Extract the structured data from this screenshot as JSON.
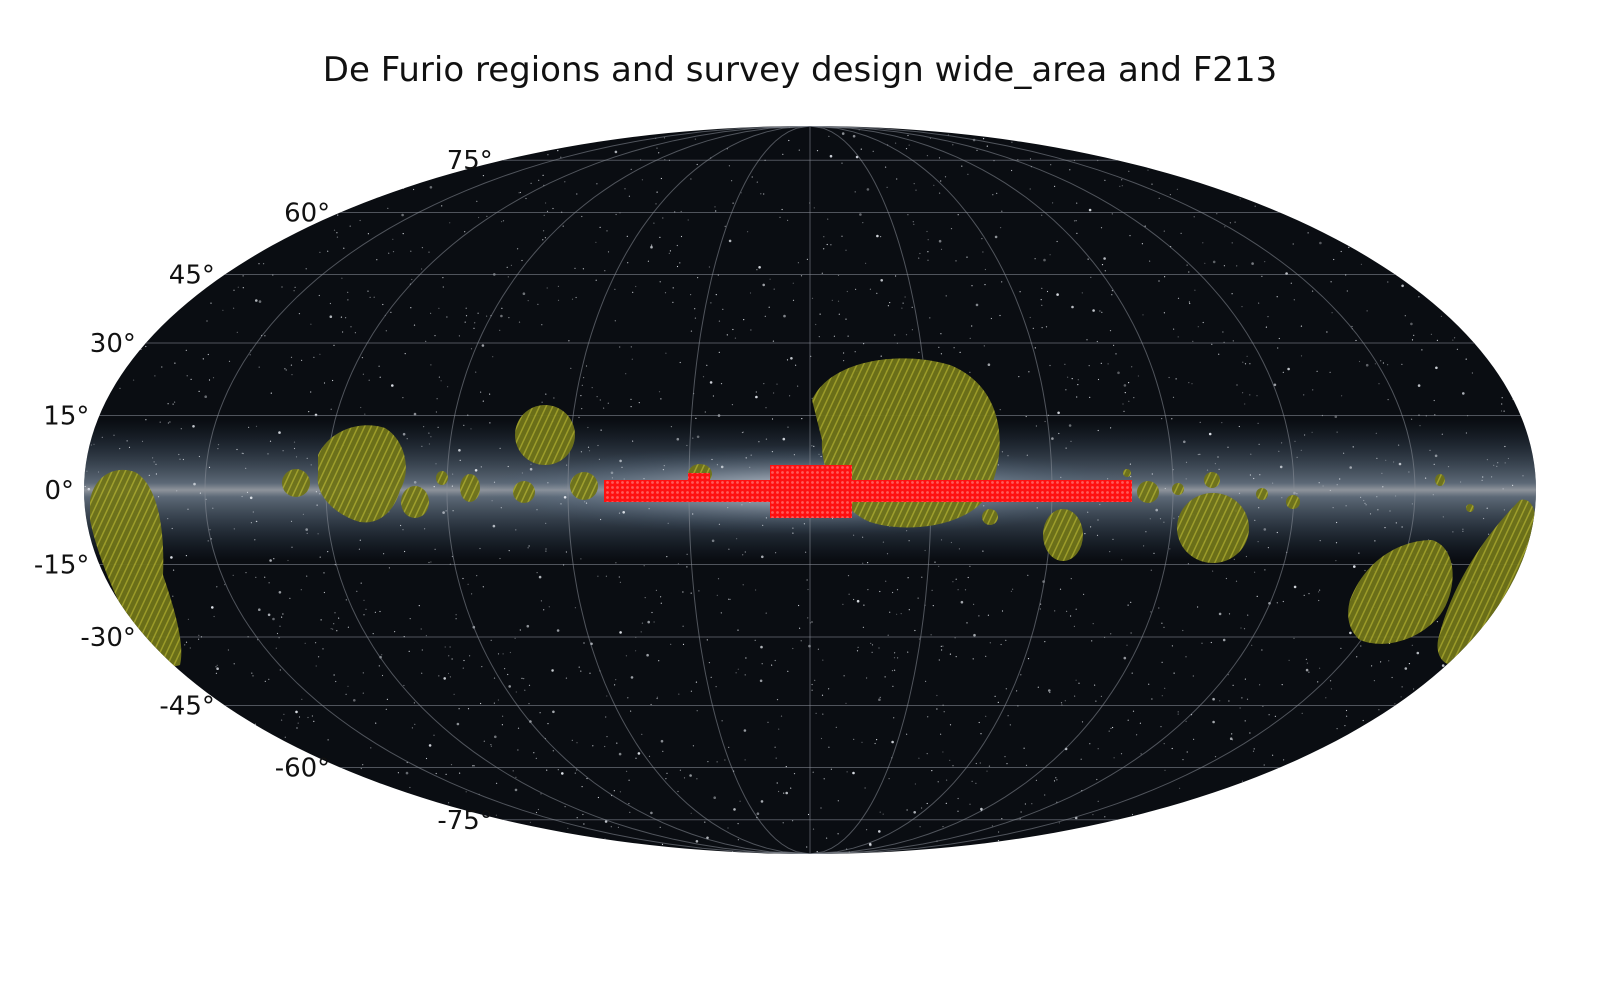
{
  "title": "De Furio regions and survey design wide_area and F213",
  "projection": "Mollweide (galactic)",
  "latitude_labels": [
    "75°",
    "60°",
    "45°",
    "30°",
    "15°",
    "0°",
    "-15°",
    "-30°",
    "-45°",
    "-60°",
    "-75°"
  ],
  "colors": {
    "sky_background": "#0a0d12",
    "graticule": "#8a8f99",
    "galactic_band": "#b9c8d8",
    "galactic_core": "#f2c0b0",
    "de_furio_regions": "#8f8f22",
    "survey_footprint": "#ff1a1a",
    "label_text": "#111111"
  },
  "chart_data": {
    "type": "map",
    "latitude_grid_deg": [
      -75,
      -60,
      -45,
      -30,
      -15,
      0,
      15,
      30,
      45,
      60,
      75
    ],
    "longitude_grid_deg": [
      -150,
      -120,
      -90,
      -60,
      -30,
      0,
      30,
      60,
      90,
      120,
      150
    ],
    "layers": [
      "De Furio regions",
      "survey design wide_area",
      "F213"
    ]
  }
}
